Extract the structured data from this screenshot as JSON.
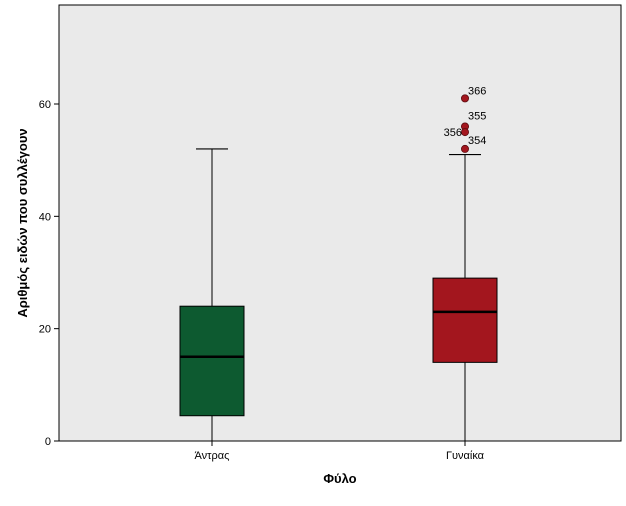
{
  "chart_data": {
    "type": "box",
    "title": "",
    "xlabel": "Φύλο",
    "ylabel": "Αριθμός ειδών που συλλέγουν",
    "ylim": [
      0,
      75
    ],
    "yticks": [
      0,
      20,
      40,
      60
    ],
    "yticks_labels": [
      "0",
      "20",
      "40",
      "60"
    ],
    "grid": false,
    "plot_background": "#eaeaea",
    "categories": [
      "Άντρας",
      "Γυναίκα"
    ],
    "boxes": [
      {
        "category": "Άντρας",
        "color": "#0d5a30",
        "whisker_low": 0,
        "q1": 4.5,
        "median": 15,
        "q3": 24,
        "whisker_high": 52,
        "outliers": []
      },
      {
        "category": "Γυναίκα",
        "color": "#a3161e",
        "whisker_low": 0,
        "q1": 14,
        "median": 23,
        "q3": 29,
        "whisker_high": 51,
        "outliers": [
          {
            "label": "366",
            "value": 61
          },
          {
            "label": "355",
            "value": 56
          },
          {
            "label": "356",
            "value": 55
          },
          {
            "label": "354",
            "value": 52
          }
        ]
      }
    ]
  }
}
